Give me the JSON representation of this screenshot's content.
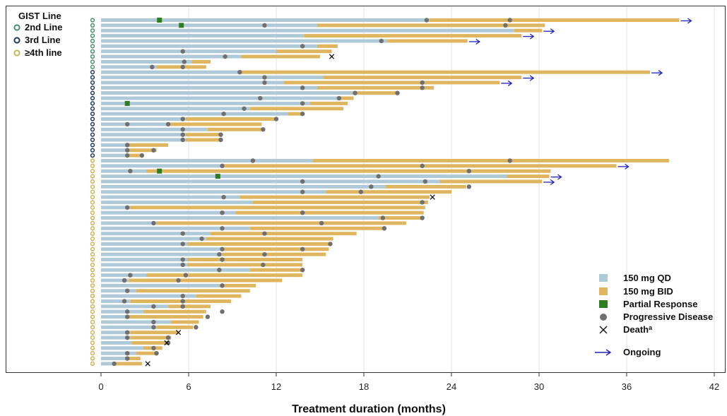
{
  "chart_data": {
    "type": "swimmer",
    "xlabel": "Treatment duration (months)",
    "xlim": [
      0,
      42
    ],
    "xticks": [
      0,
      6,
      12,
      18,
      24,
      30,
      36,
      42
    ],
    "grid": "vertical",
    "group_legend": {
      "title": "GIST Line",
      "entries": [
        {
          "label": "2nd Line",
          "color": "#4a8f70"
        },
        {
          "label": "3rd Line",
          "color": "#1f3a5c"
        },
        {
          "label": "≥4th line",
          "color": "#c9b65a"
        }
      ]
    },
    "legend": {
      "placement": "bottom-right",
      "entries": [
        {
          "kind": "qd",
          "label": "150 mg QD"
        },
        {
          "kind": "bid",
          "label": "150 mg BID"
        },
        {
          "kind": "pr",
          "label": "Partial Response"
        },
        {
          "kind": "pd",
          "label": "Progressive Disease"
        },
        {
          "kind": "death",
          "label": "Death",
          "sup": "a"
        },
        {
          "kind": "ongoing",
          "label": "Ongoing"
        }
      ]
    },
    "colors": {
      "qd": "#aec9d8",
      "bid": "#dfb65f",
      "pr": "#2e7d1e",
      "pd": "#707070",
      "death": "#111111",
      "ongoing": "#2222bb",
      "grid": "#e2e2e2"
    },
    "patients": [
      {
        "line": "2nd",
        "qd": 22.5,
        "total": 39.6,
        "pd": [
          22.3,
          28
        ],
        "pr": [
          4
        ],
        "ongoing": true
      },
      {
        "line": "2nd",
        "qd": 14.8,
        "total": 30.4,
        "pd": [
          11.2,
          27.7
        ],
        "pr": [
          5.5
        ]
      },
      {
        "line": "2nd",
        "qd": 28.3,
        "total": 30.2,
        "ongoing": true
      },
      {
        "line": "2nd",
        "qd": 13.9,
        "total": 28.8,
        "ongoing": true
      },
      {
        "line": "2nd",
        "qd": 19.6,
        "total": 25.1,
        "pd": [
          19.2
        ],
        "ongoing": true
      },
      {
        "line": "2nd",
        "qd": 14.8,
        "total": 16.2,
        "pd": [
          13.8
        ]
      },
      {
        "line": "2nd",
        "qd": 12,
        "total": 15.8,
        "pd": [
          5.6
        ]
      },
      {
        "line": "2nd",
        "qd": 9.6,
        "total": 15,
        "pd": [
          8.5
        ],
        "death": 15.8
      },
      {
        "line": "2nd",
        "qd": 6.2,
        "total": 7.5,
        "pd": [
          5.7
        ]
      },
      {
        "line": "2nd",
        "qd": 3.8,
        "total": 7.2,
        "pd": [
          3.5,
          5.6
        ]
      },
      {
        "line": "3rd",
        "qd": 9.5,
        "total": 37.6,
        "pd": [
          9.5
        ],
        "ongoing": true
      },
      {
        "line": "3rd",
        "qd": 15.2,
        "total": 28.8,
        "pd": [
          11.2
        ],
        "ongoing": true
      },
      {
        "line": "3rd",
        "qd": 12.5,
        "total": 27.3,
        "pd": [
          11.2,
          22
        ],
        "ongoing": true
      },
      {
        "line": "3rd",
        "qd": 14.8,
        "total": 22.8,
        "pd": [
          13.8,
          22
        ]
      },
      {
        "line": "3rd",
        "qd": 17.2,
        "total": 20.2,
        "pd": [
          17.4,
          20.3
        ]
      },
      {
        "line": "3rd",
        "qd": 16.2,
        "total": 17.3,
        "pd": [
          10.9,
          16.3
        ]
      },
      {
        "line": "3rd",
        "qd": 14.3,
        "total": 16.9,
        "pd": [
          13.8
        ],
        "pr": [
          1.8
        ]
      },
      {
        "line": "3rd",
        "qd": 10.2,
        "total": 16.6,
        "pd": [
          9.8
        ]
      },
      {
        "line": "3rd",
        "qd": 12.8,
        "total": 13.8,
        "pd": [
          8.4,
          13.8
        ]
      },
      {
        "line": "3rd",
        "qd": 5.8,
        "total": 12,
        "pd": [
          5.6,
          12
        ]
      },
      {
        "line": "3rd",
        "qd": 4.5,
        "total": 11,
        "pd": [
          1.8,
          4.6
        ]
      },
      {
        "line": "3rd",
        "qd": 7.3,
        "total": 11,
        "pd": [
          5.6,
          11.1
        ]
      },
      {
        "line": "3rd",
        "qd": 5.8,
        "total": 8.2,
        "pd": [
          5.6,
          8.2
        ]
      },
      {
        "line": "3rd",
        "qd": 5.8,
        "total": 8.2,
        "pd": [
          5.6,
          8.2
        ]
      },
      {
        "line": "3rd",
        "qd": 1.8,
        "total": 4.6,
        "pd": [
          1.8
        ]
      },
      {
        "line": "3rd",
        "qd": 1.8,
        "total": 3.8,
        "pd": [
          1.8,
          3.6
        ]
      },
      {
        "line": "3rd",
        "qd": 1.8,
        "total": 2.7,
        "pd": [
          1.8,
          2.8
        ]
      },
      {
        "line": "4th+",
        "qd": 14.5,
        "total": 38.9,
        "pd": [
          10.4,
          28
        ]
      },
      {
        "line": "4th+",
        "qd": 8.3,
        "total": 35.3,
        "pd": [
          8.3,
          22
        ],
        "ongoing": true
      },
      {
        "line": "4th+",
        "qd": 3.1,
        "total": 30.8,
        "pd": [
          2,
          25.2
        ],
        "pr": [
          4
        ]
      },
      {
        "line": "4th+",
        "qd": 27.8,
        "total": 30.7,
        "pd": [
          19
        ],
        "pr": [
          8
        ],
        "ongoing": true
      },
      {
        "line": "4th+",
        "qd": 23.2,
        "total": 30.2,
        "pd": [
          13.8,
          22.2
        ],
        "ongoing": true
      },
      {
        "line": "4th+",
        "qd": 19.5,
        "total": 25,
        "pd": [
          18.5,
          25.2
        ]
      },
      {
        "line": "4th+",
        "qd": 15.4,
        "total": 24,
        "pd": [
          13.8,
          17.8
        ]
      },
      {
        "line": "4th+",
        "qd": 9.5,
        "total": 22.5,
        "pd": [
          8.4
        ],
        "death": 22.7
      },
      {
        "line": "4th+",
        "qd": 10.4,
        "total": 22.4,
        "pd": [
          22
        ]
      },
      {
        "line": "4th+",
        "qd": 2,
        "total": 22.2,
        "pd": [
          1.8
        ]
      },
      {
        "line": "4th+",
        "qd": 9.2,
        "total": 22.1,
        "pd": [
          8.3,
          13.8
        ]
      },
      {
        "line": "4th+",
        "qd": 19,
        "total": 22,
        "pd": [
          19.3,
          22
        ]
      },
      {
        "line": "4th+",
        "qd": 3.8,
        "total": 20.9,
        "pd": [
          3.6,
          15.1
        ]
      },
      {
        "line": "4th+",
        "qd": 10.2,
        "total": 19.5,
        "pd": [
          8.3,
          19.4
        ]
      },
      {
        "line": "4th+",
        "qd": 7.5,
        "total": 17.5,
        "pd": [
          5.6,
          11.2
        ]
      },
      {
        "line": "4th+",
        "qd": 7.2,
        "total": 15.9,
        "pd": [
          6.9
        ]
      },
      {
        "line": "4th+",
        "qd": 5.9,
        "total": 15.7,
        "pd": [
          5.6,
          15.7
        ]
      },
      {
        "line": "4th+",
        "qd": 8.2,
        "total": 15.6,
        "pd": [
          8.3,
          13.8
        ]
      },
      {
        "line": "4th+",
        "qd": 8.3,
        "total": 15.4,
        "pd": [
          8.1,
          11.2
        ]
      },
      {
        "line": "4th+",
        "qd": 5.9,
        "total": 13.8,
        "pd": [
          5.6,
          8.3
        ]
      },
      {
        "line": "4th+",
        "qd": 5.9,
        "total": 13.8,
        "pd": [
          5.6,
          11.1
        ]
      },
      {
        "line": "4th+",
        "qd": 10.2,
        "total": 13.8,
        "pd": [
          8.1,
          13.8
        ]
      },
      {
        "line": "4th+",
        "qd": 3.1,
        "total": 13.8,
        "pd": [
          2,
          5.8
        ]
      },
      {
        "line": "4th+",
        "qd": 1.9,
        "total": 12.4,
        "pd": [
          1.6,
          5.3
        ]
      },
      {
        "line": "4th+",
        "qd": 8.1,
        "total": 10.6,
        "pd": [
          8.3
        ]
      },
      {
        "line": "4th+",
        "qd": 2.4,
        "total": 10.2,
        "pd": [
          1.8
        ]
      },
      {
        "line": "4th+",
        "qd": 6.5,
        "total": 9.6,
        "pd": [
          5.6
        ]
      },
      {
        "line": "4th+",
        "qd": 2,
        "total": 8.9,
        "pd": [
          1.6,
          5.6
        ]
      },
      {
        "line": "4th+",
        "qd": 4.6,
        "total": 7.5,
        "pd": [
          3.6,
          5.6
        ]
      },
      {
        "line": "4th+",
        "qd": 2.9,
        "total": 7.2,
        "pd": [
          1.8,
          8.3
        ]
      },
      {
        "line": "4th+",
        "qd": 1.9,
        "total": 7,
        "pd": [
          1.8,
          7.3
        ]
      },
      {
        "line": "4th+",
        "qd": 4.8,
        "total": 6.7,
        "pd": [
          3.6
        ]
      },
      {
        "line": "4th+",
        "qd": 3.8,
        "total": 6.3,
        "pd": [
          3.6,
          6.5
        ]
      },
      {
        "line": "4th+",
        "qd": 2,
        "total": 5.3,
        "pd": [
          1.8
        ],
        "death": 5.3
      },
      {
        "line": "4th+",
        "qd": 2,
        "total": 4.8,
        "pd": [
          1.8,
          4.6
        ]
      },
      {
        "line": "4th+",
        "qd": 2.1,
        "total": 4.6,
        "pd": [
          4.6
        ],
        "death": 4.5
      },
      {
        "line": "4th+",
        "qd": 2.9,
        "total": 4.2,
        "pd": [
          3.6
        ]
      },
      {
        "line": "4th+",
        "qd": 2.4,
        "total": 3.9,
        "pd": [
          1.8,
          3.8
        ]
      },
      {
        "line": "4th+",
        "qd": 1.8,
        "total": 2.7,
        "pd": [
          1.8
        ]
      },
      {
        "line": "4th+",
        "qd": 0.9,
        "total": 2.8,
        "pd": [
          0.9
        ],
        "death": 3.2
      }
    ]
  }
}
